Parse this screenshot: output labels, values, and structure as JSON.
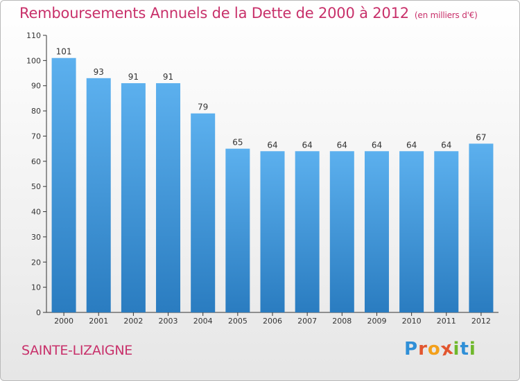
{
  "header": {
    "title": "Remboursements Annuels de la Dette de 2000 à 2012",
    "unit": "(en milliers d'€)"
  },
  "footer": {
    "commune": "SAINTE-LIZAIGNE",
    "logo_text": "Proxiti"
  },
  "colors": {
    "title": "#c8306a",
    "bar_top": "#5cb0ee",
    "bar_bottom": "#2a7cc0"
  },
  "chart_data": {
    "type": "bar",
    "title": "Remboursements Annuels de la Dette de 2000 à 2012",
    "subtitle": "(en milliers d'€)",
    "categories": [
      "2000",
      "2001",
      "2002",
      "2003",
      "2004",
      "2005",
      "2006",
      "2007",
      "2008",
      "2009",
      "2010",
      "2011",
      "2012"
    ],
    "values": [
      101,
      93,
      91,
      91,
      79,
      65,
      64,
      64,
      64,
      64,
      64,
      64,
      67
    ],
    "ylim": [
      0,
      110
    ],
    "yticks": [
      0,
      10,
      20,
      30,
      40,
      50,
      60,
      70,
      80,
      90,
      100,
      110
    ],
    "xlabel": "",
    "ylabel": "",
    "grid": false,
    "data_labels": true
  }
}
